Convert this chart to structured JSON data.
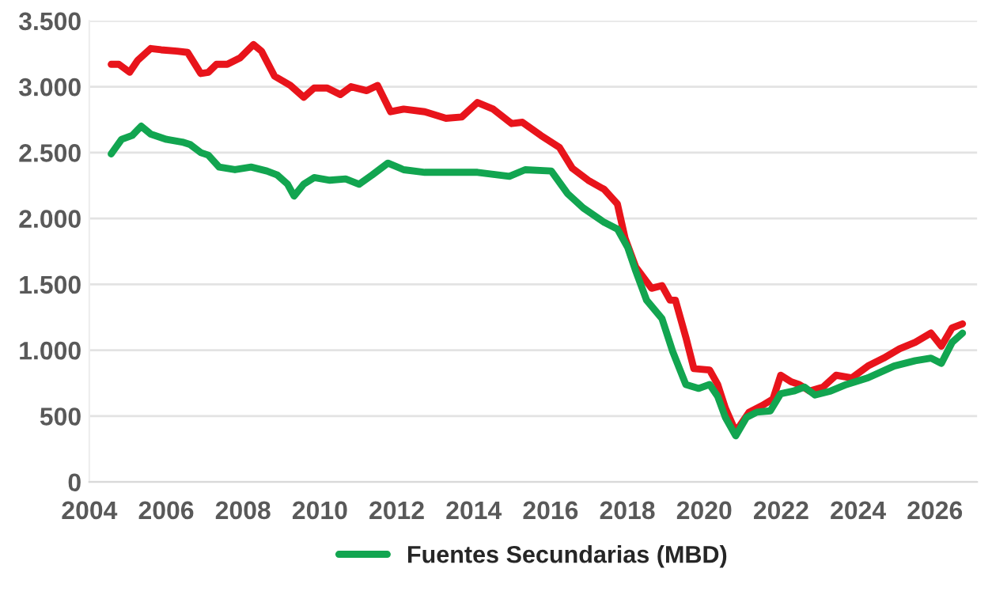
{
  "chart_data": {
    "type": "line",
    "xlim": [
      2004,
      2027.1
    ],
    "xticks": [
      2004,
      2006,
      2008,
      2010,
      2012,
      2014,
      2016,
      2018,
      2020,
      2022,
      2024,
      2026
    ],
    "ylim": [
      0,
      3500
    ],
    "yticks": [
      {
        "value": 0,
        "label": "0"
      },
      {
        "value": 500,
        "label": "500"
      },
      {
        "value": 1000,
        "label": "1.000"
      },
      {
        "value": 1500,
        "label": "1.500"
      },
      {
        "value": 2000,
        "label": "2.000"
      },
      {
        "value": 2500,
        "label": "2.500"
      },
      {
        "value": 3000,
        "label": "3.000"
      },
      {
        "value": 3500,
        "label": "3.500"
      }
    ],
    "grid": "y",
    "legend": "bottom",
    "marker": "none",
    "line_style": "solid",
    "series": [
      {
        "color": "#e8141b",
        "x": [
          2004.57,
          2004.77,
          2005.05,
          2005.26,
          2005.6,
          2005.87,
          2006.28,
          2006.56,
          2006.9,
          2007.1,
          2007.31,
          2007.59,
          2007.93,
          2008.27,
          2008.48,
          2008.82,
          2009.23,
          2009.58,
          2009.85,
          2010.19,
          2010.53,
          2010.81,
          2011.22,
          2011.5,
          2011.84,
          2012.18,
          2012.73,
          2013.28,
          2013.69,
          2014.1,
          2014.51,
          2014.99,
          2015.27,
          2015.75,
          2016.23,
          2016.57,
          2016.98,
          2017.4,
          2017.74,
          2017.94,
          2018.22,
          2018.63,
          2018.9,
          2019.11,
          2019.25,
          2019.52,
          2019.73,
          2020.14,
          2020.35,
          2020.55,
          2020.82,
          2021.17,
          2021.51,
          2021.79,
          2021.99,
          2022.26,
          2022.47,
          2022.74,
          2023.09,
          2023.43,
          2023.84,
          2024.26,
          2024.67,
          2025.08,
          2025.49,
          2025.9,
          2026.17,
          2026.45,
          2026.72
        ],
        "values": [
          3170,
          3170,
          3110,
          3200,
          3290,
          3280,
          3270,
          3260,
          3100,
          3110,
          3170,
          3170,
          3220,
          3320,
          3270,
          3080,
          3010,
          2920,
          2990,
          2990,
          2940,
          3000,
          2970,
          3010,
          2810,
          2830,
          2810,
          2760,
          2770,
          2880,
          2830,
          2720,
          2730,
          2630,
          2540,
          2380,
          2290,
          2220,
          2110,
          1850,
          1630,
          1470,
          1490,
          1380,
          1380,
          1100,
          860,
          850,
          740,
          560,
          380,
          530,
          580,
          630,
          810,
          760,
          740,
          690,
          720,
          810,
          790,
          880,
          940,
          1010,
          1060,
          1130,
          1030,
          1170,
          1200
        ]
      },
      {
        "name": "Fuentes Secundarias (MBD)",
        "color": "#12a550",
        "x": [
          2004.57,
          2004.84,
          2005.12,
          2005.35,
          2005.6,
          2006.01,
          2006.42,
          2006.63,
          2006.9,
          2007.1,
          2007.38,
          2007.79,
          2008.21,
          2008.62,
          2008.89,
          2009.16,
          2009.33,
          2009.58,
          2009.85,
          2010.26,
          2010.67,
          2011.02,
          2011.36,
          2011.77,
          2012.18,
          2012.73,
          2013.28,
          2013.69,
          2014.1,
          2014.93,
          2015.34,
          2016.02,
          2016.44,
          2016.85,
          2017.4,
          2017.74,
          2018.01,
          2018.22,
          2018.5,
          2018.9,
          2019.18,
          2019.52,
          2019.86,
          2020.14,
          2020.35,
          2020.55,
          2020.82,
          2021.1,
          2021.37,
          2021.72,
          2021.99,
          2022.33,
          2022.61,
          2022.88,
          2023.29,
          2023.7,
          2024.26,
          2024.94,
          2025.49,
          2025.9,
          2026.17,
          2026.45,
          2026.72
        ],
        "values": [
          2490,
          2600,
          2630,
          2700,
          2640,
          2600,
          2580,
          2560,
          2500,
          2480,
          2390,
          2370,
          2390,
          2360,
          2330,
          2260,
          2170,
          2260,
          2310,
          2290,
          2300,
          2260,
          2330,
          2420,
          2370,
          2350,
          2350,
          2350,
          2350,
          2320,
          2370,
          2360,
          2190,
          2080,
          1970,
          1920,
          1780,
          1600,
          1380,
          1240,
          990,
          740,
          710,
          740,
          650,
          490,
          350,
          490,
          530,
          540,
          670,
          690,
          720,
          660,
          690,
          740,
          790,
          880,
          920,
          940,
          900,
          1060,
          1130
        ]
      }
    ]
  }
}
